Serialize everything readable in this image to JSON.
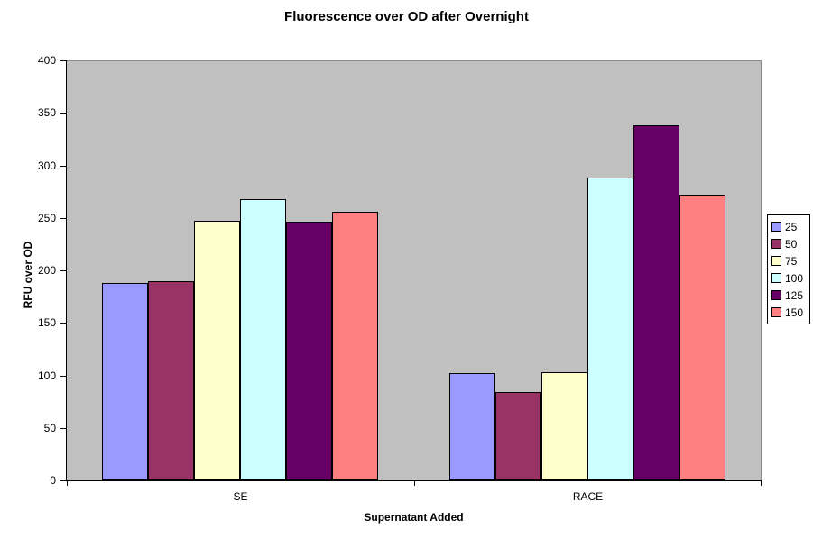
{
  "chart_data": {
    "type": "bar",
    "title": "Fluorescence over OD after Overnight",
    "xlabel": "Supernatant Added",
    "ylabel": "RFU over OD",
    "categories": [
      "SE",
      "RACE"
    ],
    "series": [
      {
        "name": "25",
        "color": "#9999FF",
        "values": [
          188,
          102
        ]
      },
      {
        "name": "50",
        "color": "#993366",
        "values": [
          190,
          84
        ]
      },
      {
        "name": "75",
        "color": "#FFFFCC",
        "values": [
          247,
          103
        ]
      },
      {
        "name": "100",
        "color": "#CCFFFF",
        "values": [
          268,
          288
        ]
      },
      {
        "name": "125",
        "color": "#660066",
        "values": [
          246,
          338
        ]
      },
      {
        "name": "150",
        "color": "#FF8080",
        "values": [
          256,
          272
        ]
      }
    ],
    "ylim": [
      0,
      400
    ],
    "ytick_step": 50,
    "grid": false,
    "legend_position": "right",
    "plot_bg_color": "#C0C0C0",
    "bar_border_color": "#000000"
  }
}
